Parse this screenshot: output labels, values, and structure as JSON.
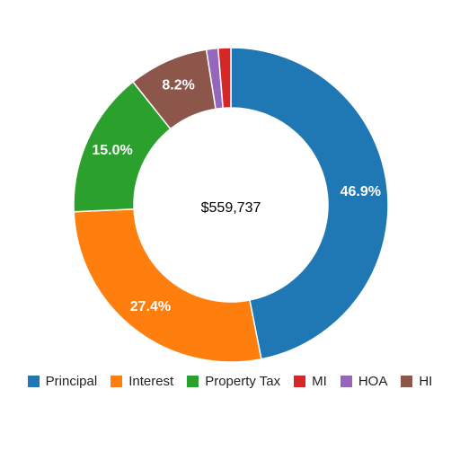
{
  "chart_data": {
    "type": "pie",
    "center_label": "$559,737",
    "slices": [
      {
        "name": "Principal",
        "value": 46.9,
        "label": "46.9%",
        "color": "#1f77b4"
      },
      {
        "name": "Interest",
        "value": 27.4,
        "label": "27.4%",
        "color": "#ff7f0e"
      },
      {
        "name": "Property Tax",
        "value": 15.0,
        "label": "15.0%",
        "color": "#2ca02c"
      },
      {
        "name": "HI",
        "value": 8.2,
        "label": "8.2%",
        "color": "#8c564b"
      },
      {
        "name": "HOA",
        "value": 1.2,
        "label": "",
        "color": "#9467bd"
      },
      {
        "name": "MI",
        "value": 1.3,
        "label": "",
        "color": "#d62728"
      }
    ],
    "legend": {
      "position": "bottom",
      "items": [
        {
          "name": "Principal",
          "color": "#1f77b4"
        },
        {
          "name": "Interest",
          "color": "#ff7f0e"
        },
        {
          "name": "Property Tax",
          "color": "#2ca02c"
        },
        {
          "name": "MI",
          "color": "#d62728"
        },
        {
          "name": "HOA",
          "color": "#9467bd"
        },
        {
          "name": "HI",
          "color": "#8c564b"
        }
      ]
    }
  }
}
